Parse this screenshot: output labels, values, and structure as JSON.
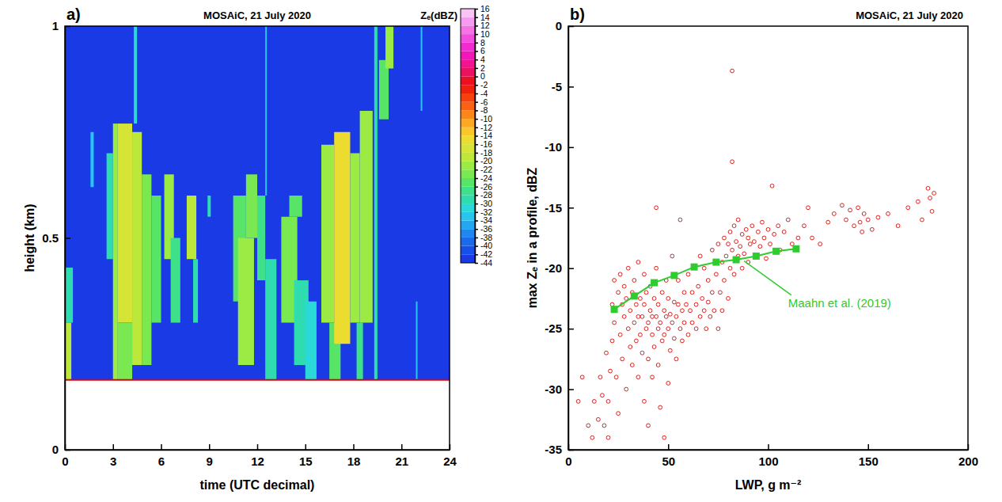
{
  "chart_data": [
    {
      "type": "heatmap",
      "panel": "a)",
      "title": "MOSAiC, 21 July 2020",
      "x_label": "time (UTC decimal)",
      "y_label": "height (km)",
      "xlim": [
        0,
        24
      ],
      "xticks": [
        0,
        3,
        6,
        9,
        12,
        15,
        18,
        21,
        24
      ],
      "ylim": [
        0,
        1
      ],
      "yticks": [
        0,
        0.5,
        1
      ],
      "lowest_height": 0.165,
      "cells": [
        [
          0,
          24,
          0.165,
          1,
          -44
        ],
        [
          0,
          0.5,
          0.3,
          0.43,
          -30
        ],
        [
          0,
          0.4,
          0.165,
          0.3,
          -20
        ],
        [
          1.6,
          1.8,
          0.62,
          0.75,
          -34
        ],
        [
          2.6,
          3.0,
          0.45,
          0.7,
          -30
        ],
        [
          3.0,
          3.3,
          0.165,
          0.77,
          -22
        ],
        [
          3.3,
          4.2,
          0.3,
          0.77,
          -18
        ],
        [
          3.3,
          4.2,
          0.165,
          0.3,
          -24
        ],
        [
          4.2,
          4.8,
          0.2,
          0.75,
          -20
        ],
        [
          4.3,
          4.5,
          0.77,
          1.0,
          -32
        ],
        [
          4.8,
          5.4,
          0.2,
          0.65,
          -24
        ],
        [
          5.4,
          6.0,
          0.3,
          0.6,
          -26
        ],
        [
          6.2,
          6.8,
          0.45,
          0.65,
          -22
        ],
        [
          6.6,
          7.2,
          0.3,
          0.5,
          -28
        ],
        [
          7.6,
          8.2,
          0.45,
          0.6,
          -20
        ],
        [
          8.0,
          8.3,
          0.3,
          0.45,
          -30
        ],
        [
          8.9,
          9.1,
          0.55,
          0.6,
          -30
        ],
        [
          10.5,
          11.3,
          0.35,
          0.6,
          -26
        ],
        [
          10.8,
          11.8,
          0.2,
          0.5,
          -22
        ],
        [
          11.3,
          12.0,
          0.5,
          0.65,
          -24
        ],
        [
          12.0,
          12.5,
          0.4,
          0.6,
          -28
        ],
        [
          12.5,
          13.2,
          0.165,
          0.45,
          -30
        ],
        [
          12.5,
          12.6,
          0.6,
          1.0,
          -34
        ],
        [
          13.5,
          14.5,
          0.3,
          0.55,
          -24
        ],
        [
          14.0,
          14.8,
          0.55,
          0.6,
          -26
        ],
        [
          14.3,
          15.2,
          0.2,
          0.4,
          -30
        ],
        [
          15.0,
          15.7,
          0.165,
          0.35,
          -32
        ],
        [
          16.0,
          16.8,
          0.3,
          0.72,
          -22
        ],
        [
          16.5,
          17.2,
          0.165,
          0.3,
          -26
        ],
        [
          16.8,
          17.8,
          0.25,
          0.75,
          -16
        ],
        [
          17.8,
          18.4,
          0.3,
          0.7,
          -22
        ],
        [
          18.2,
          18.6,
          0.165,
          0.3,
          -28
        ],
        [
          18.4,
          19.2,
          0.3,
          0.8,
          -22
        ],
        [
          19.3,
          19.5,
          0.165,
          1.0,
          -30
        ],
        [
          19.6,
          20.2,
          0.78,
          0.92,
          -26
        ],
        [
          20.0,
          20.5,
          0.9,
          1.0,
          -22
        ],
        [
          21.9,
          22.0,
          0.165,
          0.35,
          -34
        ],
        [
          22.2,
          22.3,
          0.8,
          1.0,
          -34
        ]
      ],
      "colorbar": {
        "title": "Zₑ(dBZ)",
        "range": [
          -44,
          16
        ],
        "ticks": [
          -44,
          -42,
          -40,
          -38,
          -36,
          -34,
          -32,
          -30,
          -28,
          -26,
          -24,
          -22,
          -20,
          -18,
          -16,
          -14,
          -12,
          -10,
          -8,
          -6,
          -4,
          -2,
          0,
          2,
          4,
          6,
          8,
          10,
          12,
          14,
          16
        ],
        "colors": [
          "#1a3ae6",
          "#1650e8",
          "#1a6aec",
          "#1e88f0",
          "#22a8f2",
          "#26c6ee",
          "#2ad8d8",
          "#2fdcb0",
          "#3ee08a",
          "#58e466",
          "#7ae850",
          "#9cea44",
          "#bce83c",
          "#d6e436",
          "#ecdc30",
          "#f8c828",
          "#fca820",
          "#fc8618",
          "#fa6212",
          "#f6400e",
          "#f02010",
          "#ea1020",
          "#ec1060",
          "#f01490",
          "#f218b8",
          "#f22ad0",
          "#f24ede",
          "#f474e6",
          "#f69cee",
          "#f8c4f4"
        ]
      }
    },
    {
      "type": "scatter",
      "panel": "b)",
      "title": "MOSAiC, 21 July 2020",
      "x_label": "LWP, g m⁻²",
      "y_label": "max Zₑ in a profile, dBZ",
      "xlim": [
        0,
        200
      ],
      "xticks": [
        0,
        50,
        100,
        150,
        200
      ],
      "ylim": [
        -35,
        0
      ],
      "yticks": [
        -35,
        -30,
        -25,
        -20,
        -15,
        -10,
        -5,
        0
      ],
      "series": [
        {
          "type": "scatter",
          "color": "#e0201c",
          "marker": "circle",
          "x": [
            5,
            7,
            10,
            12,
            13,
            15,
            16,
            17,
            18,
            19,
            20,
            20,
            21,
            22,
            22,
            23,
            23,
            24,
            25,
            25,
            26,
            26,
            27,
            27,
            28,
            28,
            29,
            29,
            30,
            30,
            31,
            31,
            32,
            32,
            33,
            33,
            34,
            34,
            35,
            35,
            35,
            36,
            36,
            37,
            37,
            38,
            38,
            38,
            39,
            39,
            40,
            40,
            40,
            41,
            41,
            42,
            42,
            42,
            43,
            43,
            44,
            44,
            44,
            45,
            45,
            45,
            46,
            46,
            47,
            47,
            48,
            48,
            48,
            49,
            49,
            50,
            50,
            50,
            51,
            51,
            52,
            52,
            53,
            53,
            54,
            54,
            55,
            55,
            56,
            56,
            57,
            57,
            58,
            58,
            59,
            60,
            60,
            61,
            62,
            62,
            63,
            64,
            64,
            65,
            66,
            66,
            67,
            68,
            68,
            69,
            70,
            70,
            71,
            72,
            72,
            73,
            74,
            75,
            75,
            76,
            77,
            77,
            78,
            78,
            79,
            80,
            80,
            81,
            81,
            82,
            82,
            82,
            83,
            83,
            84,
            85,
            85,
            86,
            87,
            87,
            88,
            89,
            90,
            90,
            91,
            92,
            93,
            94,
            95,
            96,
            97,
            98,
            99,
            100,
            101,
            102,
            103,
            105,
            106,
            108,
            110,
            112,
            115,
            118,
            120,
            122,
            126,
            130,
            133,
            137,
            139,
            141,
            143,
            145,
            146,
            147,
            148,
            150,
            152,
            155,
            160,
            165,
            170,
            175,
            177,
            180,
            181,
            182,
            183
          ],
          "values": [
            -31,
            -29,
            -33,
            -34,
            -31,
            -32.5,
            -29,
            -30.5,
            -33,
            -27,
            -34,
            -31,
            -28.5,
            -26,
            -23,
            -21,
            -24.5,
            -29,
            -22,
            -32,
            -20.5,
            -25.5,
            -23,
            -27.5,
            -21.5,
            -24,
            -22.5,
            -30,
            -20,
            -25,
            -23.5,
            -26.5,
            -22,
            -28,
            -24.5,
            -21,
            -23,
            -26,
            -19.5,
            -24,
            -29,
            -22.5,
            -25.5,
            -24,
            -27,
            -23,
            -20.5,
            -31,
            -25,
            -22,
            -24.5,
            -27.5,
            -33,
            -23.5,
            -21.5,
            -25.5,
            -24,
            -29,
            -22.5,
            -26.5,
            -24,
            -20,
            -15,
            -25,
            -23,
            -28,
            -24.5,
            -31.5,
            -22,
            -26,
            -23.5,
            -25.5,
            -34,
            -24,
            -21,
            -25,
            -22.5,
            -29.5,
            -23.8,
            -26.8,
            -24.5,
            -19,
            -22.8,
            -25.8,
            -24,
            -27.5,
            -23,
            -21,
            -25,
            -16,
            -23.5,
            -26,
            -22,
            -24.5,
            -23,
            -25.5,
            -20.5,
            -23.5,
            -24.5,
            -22,
            -19.8,
            -23,
            -25,
            -21.5,
            -24,
            -19,
            -22.5,
            -23.5,
            -20,
            -25,
            -21,
            -22.8,
            -24,
            -18.5,
            -22,
            -23.5,
            -20.5,
            -25,
            -18,
            -22,
            -19.5,
            -23.5,
            -17.5,
            -21,
            -19,
            -18,
            -22.5,
            -20,
            -17,
            -3.7,
            -11.2,
            -18.5,
            -16.5,
            -20.5,
            -17.8,
            -19,
            -16,
            -18.2,
            -17.2,
            -20,
            -18.8,
            -16.8,
            -17.5,
            -19.5,
            -18,
            -16.5,
            -17.8,
            -19,
            -17,
            -18.2,
            -16.2,
            -17.5,
            -19.2,
            -16.8,
            -18,
            -13.2,
            -17.2,
            -16.5,
            -18.5,
            -17,
            -16,
            -18,
            -17.5,
            -16.5,
            -15,
            -17.5,
            -18,
            -16.2,
            -15.5,
            -14.8,
            -16,
            -15.2,
            -16.5,
            -15,
            -16.2,
            -17,
            -15.5,
            -16,
            -16.8,
            -15.8,
            -15.5,
            -16.5,
            -15,
            -14.5,
            -16,
            -13.4,
            -14.2,
            -15.3,
            -13.8
          ]
        },
        {
          "type": "line",
          "color": "#2ecc2e",
          "marker": "square",
          "line_style": "solid",
          "x": [
            23,
            33,
            43,
            53,
            63,
            74,
            84,
            94,
            104,
            114
          ],
          "values": [
            -23.4,
            -22.3,
            -21.2,
            -20.6,
            -19.9,
            -19.5,
            -19.3,
            -19.0,
            -18.6,
            -18.4
          ]
        }
      ],
      "annotations": [
        {
          "text": "Maahn et al. (2019)",
          "x": 110,
          "y": -23.2,
          "arrow_to": [
            88,
            -19.4
          ]
        }
      ]
    }
  ]
}
